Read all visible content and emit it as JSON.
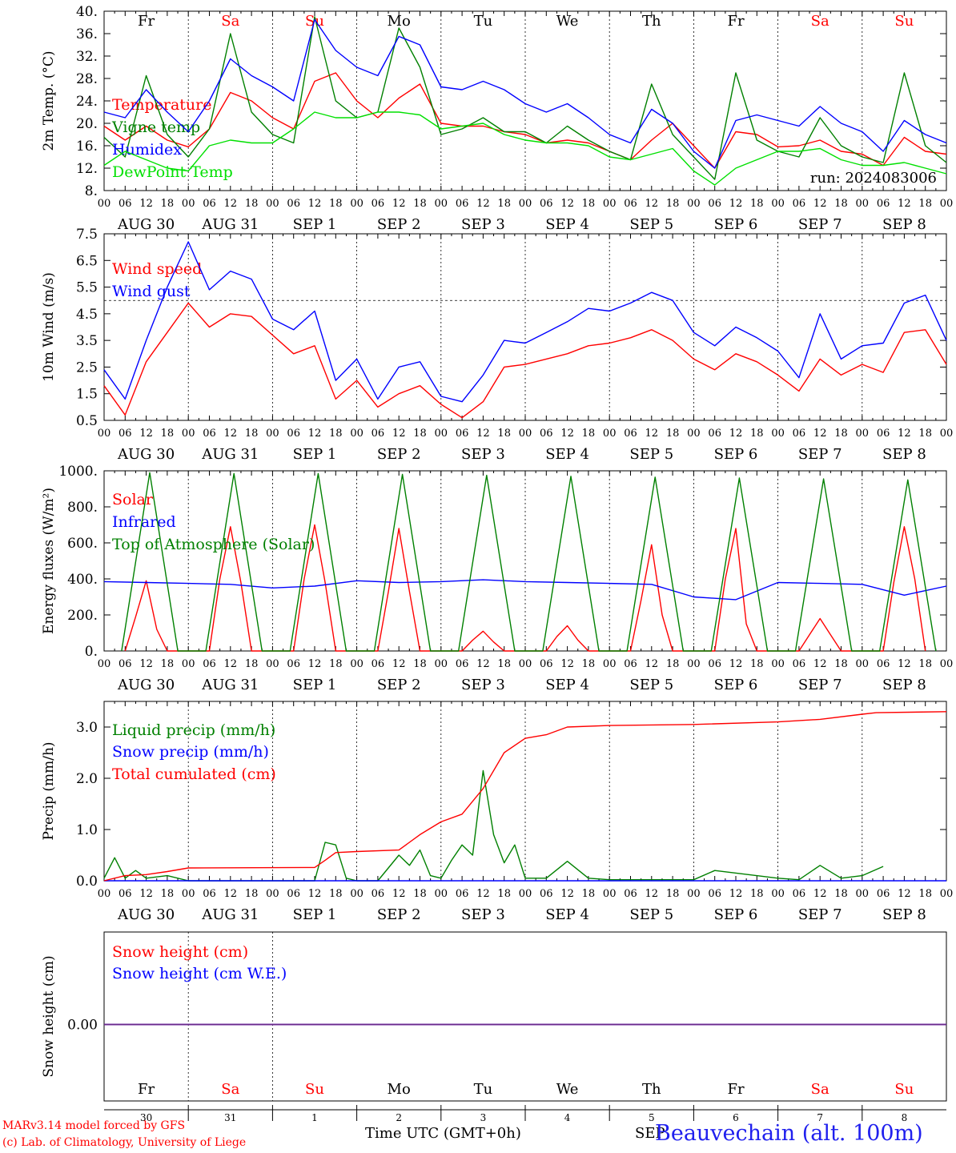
{
  "chart_data": [
    {
      "type": "line",
      "ylabel": "2m Temp. (°C)",
      "ylim": [
        8,
        40
      ],
      "yticks": [
        "8.",
        "12.",
        "16.",
        "20.",
        "24.",
        "28.",
        "32.",
        "36.",
        "40."
      ],
      "grid": "vertical dashed lines at 00 UTC",
      "legend_position": "left",
      "top_day_labels": [
        {
          "label": "Fr",
          "color": "#000000"
        },
        {
          "label": "Sa",
          "color": "#ff0000"
        },
        {
          "label": "Su",
          "color": "#ff0000"
        },
        {
          "label": "Mo",
          "color": "#000000"
        },
        {
          "label": "Tu",
          "color": "#000000"
        },
        {
          "label": "We",
          "color": "#000000"
        },
        {
          "label": "Th",
          "color": "#000000"
        },
        {
          "label": "Fr",
          "color": "#000000"
        },
        {
          "label": "Sa",
          "color": "#ff0000"
        },
        {
          "label": "Su",
          "color": "#ff0000"
        }
      ],
      "annotation": "run: 2024083006",
      "series": [
        {
          "name": "Temperature",
          "color": "#ff0000",
          "x": [
            0,
            6,
            12,
            18,
            24,
            30,
            36,
            42,
            48,
            54,
            60,
            66,
            72,
            78,
            84,
            90,
            96,
            102,
            108,
            114,
            120,
            126,
            132,
            138,
            144,
            150,
            156,
            162,
            168,
            174,
            180,
            186,
            192,
            198,
            204,
            210,
            216,
            222,
            228,
            234,
            240
          ],
          "values": [
            19.5,
            17,
            19.5,
            17,
            15.8,
            19,
            25.5,
            24,
            21,
            19,
            27.5,
            29,
            24,
            21,
            24.5,
            27,
            20,
            19.5,
            19.5,
            18.5,
            18,
            16.5,
            17,
            16.5,
            15,
            13.5,
            17,
            20,
            16,
            12,
            18.5,
            18,
            15.8,
            16,
            17,
            15,
            14.5,
            12.5,
            17.5,
            15,
            14.5
          ]
        },
        {
          "name": "Vigne temp",
          "color": "#008000",
          "x": [
            0,
            6,
            12,
            18,
            24,
            30,
            36,
            42,
            48,
            54,
            60,
            66,
            72,
            78,
            84,
            90,
            96,
            102,
            108,
            114,
            120,
            126,
            132,
            138,
            144,
            150,
            156,
            162,
            168,
            174,
            180,
            186,
            192,
            198,
            204,
            210,
            216,
            222,
            228,
            234,
            240
          ],
          "values": [
            17.5,
            14,
            28.5,
            18,
            14,
            19,
            36,
            22,
            18,
            16.5,
            39,
            24,
            21,
            22,
            37,
            30,
            18,
            19,
            21,
            18.5,
            18.5,
            16.5,
            19.5,
            17,
            15,
            13.5,
            27,
            18,
            14,
            10,
            29,
            17,
            15,
            14,
            21,
            16,
            14,
            13,
            29,
            16,
            13
          ]
        },
        {
          "name": "Humidex",
          "color": "#0000ff",
          "x": [
            0,
            6,
            12,
            18,
            24,
            30,
            36,
            42,
            48,
            54,
            60,
            66,
            72,
            78,
            84,
            90,
            96,
            102,
            108,
            114,
            120,
            126,
            132,
            138,
            144,
            150,
            156,
            162,
            168,
            174,
            180,
            186,
            192,
            198,
            204,
            210,
            216,
            222,
            228,
            234,
            240
          ],
          "values": [
            22,
            21,
            26,
            22,
            18.5,
            24,
            31.5,
            28.5,
            26.5,
            24,
            38.5,
            33,
            30,
            28.5,
            35.5,
            34,
            26.5,
            26,
            27.5,
            26,
            23.5,
            22,
            23.5,
            21,
            18,
            16.5,
            22.5,
            20,
            15,
            12,
            20.5,
            21.5,
            20.5,
            19.5,
            23,
            20,
            18.5,
            15,
            20.5,
            18,
            16.5
          ]
        },
        {
          "name": "DewPoint Temp",
          "color": "#00e000",
          "x": [
            0,
            6,
            12,
            18,
            24,
            30,
            36,
            42,
            48,
            54,
            60,
            66,
            72,
            78,
            84,
            90,
            96,
            102,
            108,
            114,
            120,
            126,
            132,
            138,
            144,
            150,
            156,
            162,
            168,
            174,
            180,
            186,
            192,
            198,
            204,
            210,
            216,
            222,
            228,
            234,
            240
          ],
          "values": [
            12.5,
            15,
            13.5,
            12,
            11.5,
            16,
            17,
            16.5,
            16.5,
            19,
            22,
            21,
            21,
            22,
            22,
            21.5,
            19,
            19.5,
            20,
            18,
            17,
            16.5,
            16.5,
            16,
            14,
            13.5,
            14.5,
            15.5,
            11.5,
            9,
            12,
            13.5,
            15,
            15,
            15.5,
            13.5,
            12.5,
            12.5,
            13,
            12,
            11
          ]
        }
      ]
    },
    {
      "type": "line",
      "ylabel": "10m Wind (m/s)",
      "ylim": [
        0.5,
        7.5
      ],
      "yticks": [
        "0.5",
        "1.5",
        "2.5",
        "3.5",
        "4.5",
        "5.5",
        "6.5",
        "7.5"
      ],
      "reference_line": 5.0,
      "legend_position": "left",
      "series": [
        {
          "name": "Wind speed",
          "color": "#ff0000",
          "x": [
            0,
            6,
            12,
            18,
            24,
            30,
            36,
            42,
            48,
            54,
            60,
            66,
            72,
            78,
            84,
            90,
            96,
            102,
            108,
            114,
            120,
            126,
            132,
            138,
            144,
            150,
            156,
            162,
            168,
            174,
            180,
            186,
            192,
            198,
            204,
            210,
            216,
            222,
            228,
            234,
            240
          ],
          "values": [
            1.8,
            0.7,
            2.7,
            3.8,
            4.9,
            4.0,
            4.5,
            4.4,
            3.7,
            3.0,
            3.3,
            1.3,
            2.0,
            1.0,
            1.5,
            1.8,
            1.1,
            0.6,
            1.2,
            2.5,
            2.6,
            2.8,
            3.0,
            3.3,
            3.4,
            3.6,
            3.9,
            3.5,
            2.8,
            2.4,
            3.0,
            2.7,
            2.2,
            1.6,
            2.8,
            2.2,
            2.6,
            2.3,
            3.8,
            3.9,
            2.6
          ]
        },
        {
          "name": "Wind gust",
          "color": "#0000ff",
          "x": [
            0,
            6,
            12,
            18,
            24,
            30,
            36,
            42,
            48,
            54,
            60,
            66,
            72,
            78,
            84,
            90,
            96,
            102,
            108,
            114,
            120,
            126,
            132,
            138,
            144,
            150,
            156,
            162,
            168,
            174,
            180,
            186,
            192,
            198,
            204,
            210,
            216,
            222,
            228,
            234,
            240
          ],
          "values": [
            2.4,
            1.3,
            3.5,
            5.5,
            7.2,
            5.4,
            6.1,
            5.8,
            4.3,
            3.9,
            4.6,
            2.0,
            2.8,
            1.3,
            2.5,
            2.7,
            1.4,
            1.2,
            2.2,
            3.5,
            3.4,
            3.8,
            4.2,
            4.7,
            4.6,
            4.9,
            5.3,
            5.0,
            3.8,
            3.3,
            4.0,
            3.6,
            3.1,
            2.1,
            4.5,
            2.8,
            3.3,
            3.4,
            4.9,
            5.2,
            3.5
          ]
        }
      ]
    },
    {
      "type": "line",
      "ylabel": "Energy fluxes (W/m²)",
      "ylim": [
        0,
        1000
      ],
      "yticks": [
        "0.",
        "200.",
        "400.",
        "600.",
        "800.",
        "1000."
      ],
      "legend_position": "left",
      "series": [
        {
          "name": "Solar",
          "color": "#ff0000",
          "x": [
            6,
            9,
            12,
            15,
            18,
            30,
            33,
            36,
            39,
            42,
            54,
            57,
            60,
            63,
            66,
            78,
            81,
            84,
            87,
            90,
            102,
            105,
            108,
            111,
            114,
            126,
            129,
            132,
            135,
            138,
            150,
            153,
            156,
            159,
            162,
            174,
            177,
            180,
            183,
            186,
            198,
            201,
            204,
            207,
            210,
            222,
            225,
            228,
            231,
            234
          ],
          "values": [
            0,
            190,
            390,
            120,
            0,
            0,
            400,
            690,
            380,
            0,
            0,
            400,
            700,
            380,
            0,
            0,
            330,
            680,
            330,
            0,
            0,
            60,
            110,
            50,
            0,
            0,
            80,
            140,
            60,
            0,
            0,
            280,
            590,
            200,
            0,
            0,
            400,
            680,
            150,
            0,
            0,
            90,
            180,
            90,
            0,
            0,
            380,
            690,
            400,
            0
          ]
        },
        {
          "name": "Infrared",
          "color": "#0000ff",
          "x": [
            0,
            12,
            24,
            36,
            48,
            60,
            72,
            84,
            96,
            108,
            120,
            132,
            144,
            156,
            168,
            180,
            192,
            204,
            216,
            228,
            240
          ],
          "values": [
            385,
            380,
            375,
            370,
            350,
            360,
            390,
            380,
            385,
            395,
            385,
            380,
            375,
            370,
            300,
            285,
            380,
            375,
            370,
            310,
            360
          ]
        },
        {
          "name": "Top of Atmosphere (Solar)",
          "color": "#008000",
          "x": [
            5,
            13,
            21,
            29,
            37,
            45,
            53,
            61,
            69,
            77,
            85,
            93,
            101,
            109,
            117,
            125,
            133,
            141,
            149,
            157,
            165,
            173,
            181,
            189,
            197,
            205,
            213,
            221,
            229,
            237
          ],
          "values": [
            0,
            990,
            0,
            0,
            985,
            0,
            0,
            985,
            0,
            0,
            980,
            0,
            0,
            975,
            0,
            0,
            970,
            0,
            0,
            965,
            0,
            0,
            960,
            0,
            0,
            955,
            0,
            0,
            950,
            0
          ]
        }
      ]
    },
    {
      "type": "line",
      "ylabel": "Precip (mm/h)",
      "ylim": [
        0,
        3.5
      ],
      "yticks": [
        "0.0",
        "1.0",
        "2.0",
        "3.0"
      ],
      "legend_position": "left",
      "series": [
        {
          "name": "Liquid precip (mm/h)",
          "color": "#008000",
          "x": [
            0,
            3,
            6,
            9,
            12,
            18,
            24,
            30,
            36,
            42,
            48,
            54,
            60,
            63,
            66,
            69,
            72,
            78,
            84,
            87,
            90,
            93,
            96,
            99,
            102,
            105,
            108,
            111,
            114,
            117,
            120,
            126,
            132,
            138,
            144,
            168,
            174,
            192,
            198,
            204,
            210,
            216,
            222
          ],
          "values": [
            0.05,
            0.45,
            0.05,
            0.2,
            0.05,
            0.1,
            0.0,
            0.0,
            0.0,
            0.0,
            0.0,
            0.0,
            0.0,
            0.75,
            0.7,
            0.05,
            0.0,
            0.0,
            0.5,
            0.3,
            0.6,
            0.1,
            0.05,
            0.4,
            0.7,
            0.5,
            2.15,
            0.9,
            0.35,
            0.7,
            0.05,
            0.05,
            0.38,
            0.05,
            0.02,
            0.02,
            0.2,
            0.05,
            0.02,
            0.3,
            0.05,
            0.1,
            0.28
          ]
        },
        {
          "name": "Snow precip (mm/h)",
          "color": "#0000ff",
          "x": [
            0,
            240
          ],
          "values": [
            0,
            0
          ]
        },
        {
          "name": "Total cumulated (cm)",
          "color": "#ff0000",
          "x": [
            0,
            6,
            12,
            18,
            24,
            60,
            63,
            66,
            72,
            84,
            90,
            96,
            102,
            108,
            114,
            120,
            126,
            132,
            144,
            168,
            192,
            204,
            216,
            220,
            240
          ],
          "values": [
            0.0,
            0.1,
            0.12,
            0.18,
            0.25,
            0.26,
            0.4,
            0.55,
            0.57,
            0.6,
            0.9,
            1.15,
            1.3,
            1.8,
            2.5,
            2.78,
            2.85,
            3.0,
            3.03,
            3.05,
            3.1,
            3.15,
            3.25,
            3.28,
            3.3
          ]
        }
      ]
    },
    {
      "type": "line",
      "ylabel": "Snow height (cm)",
      "yticks": [
        "0.00"
      ],
      "legend_position": "left",
      "series": [
        {
          "name": "Snow height (cm)",
          "color": "#ff0000",
          "x": [
            0,
            240
          ],
          "values": [
            0,
            0
          ]
        },
        {
          "name": "Snow height (cm W.E.)",
          "color": "#0000ff",
          "x": [
            0,
            240
          ],
          "values": [
            0,
            0
          ]
        }
      ]
    }
  ],
  "x_hour_ticks": [
    "00",
    "06",
    "12",
    "18"
  ],
  "date_labels": [
    "AUG 30",
    "AUG 31",
    "SEP  1",
    "SEP  2",
    "SEP  3",
    "SEP  4",
    "SEP  5",
    "SEP  6",
    "SEP  7",
    "SEP  8"
  ],
  "bottom_axis": {
    "day_labels": [
      {
        "label": "Fr",
        "color": "#000000"
      },
      {
        "label": "Sa",
        "color": "#ff0000"
      },
      {
        "label": "Su",
        "color": "#ff0000"
      },
      {
        "label": "Mo",
        "color": "#000000"
      },
      {
        "label": "Tu",
        "color": "#000000"
      },
      {
        "label": "We",
        "color": "#000000"
      },
      {
        "label": "Th",
        "color": "#000000"
      },
      {
        "label": "Fr",
        "color": "#000000"
      },
      {
        "label": "Sa",
        "color": "#ff0000"
      },
      {
        "label": "Su",
        "color": "#ff0000"
      }
    ],
    "day_numbers": [
      "30",
      "31",
      "1",
      "2",
      "3",
      "4",
      "5",
      "6",
      "7",
      "8"
    ],
    "xlabel": "Time UTC (GMT+0h)",
    "partial_label": "SEP"
  },
  "footer": {
    "credit_line_1": "MARv3.14 model forced by GFS",
    "credit_line_2": "(c) Lab. of Climatology, University of Liege",
    "station": "Beauvechain (alt. 100m)"
  }
}
